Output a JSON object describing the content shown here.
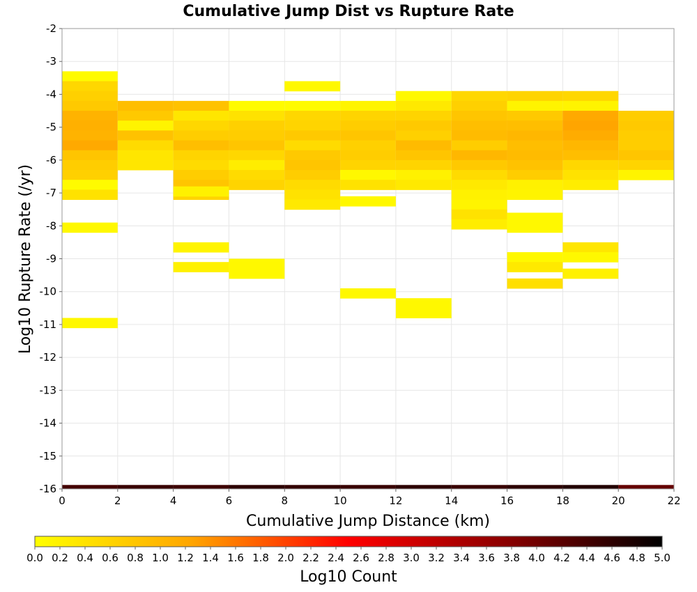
{
  "chart_data": {
    "type": "heatmap",
    "title": "Cumulative Jump Dist vs Rupture Rate",
    "xlabel": "Cumulative Jump Distance (km)",
    "ylabel": "Log10 Rupture Rate (/yr)",
    "xlim": [
      0,
      22
    ],
    "ylim": [
      -16,
      -2
    ],
    "x_ticks": [
      0,
      2,
      4,
      6,
      8,
      10,
      12,
      14,
      16,
      18,
      20,
      22
    ],
    "y_ticks": [
      -2,
      -3,
      -4,
      -5,
      -6,
      -7,
      -8,
      -9,
      -10,
      -11,
      -12,
      -13,
      -14,
      -15,
      -16
    ],
    "x_bin_width": 2,
    "y_bin_height": 0.3,
    "grid": true,
    "colorbar": {
      "label": "Log10 Count",
      "min": 0.0,
      "max": 5.0,
      "ticks": [
        "0.0",
        "0.2",
        "0.4",
        "0.6",
        "0.8",
        "1.0",
        "1.2",
        "1.4",
        "1.6",
        "1.8",
        "2.0",
        "2.2",
        "2.4",
        "2.6",
        "2.8",
        "3.0",
        "3.2",
        "3.4",
        "3.6",
        "3.8",
        "4.0",
        "4.2",
        "4.4",
        "4.6",
        "4.8",
        "5.0"
      ],
      "colors": [
        "#ffff00",
        "#ffa500",
        "#ff0000",
        "#8b0000",
        "#000000"
      ]
    },
    "columns": [
      {
        "x": 0,
        "y_top": -3.3,
        "values": [
          0.05,
          0.55,
          0.65,
          0.75,
          1.05,
          1.1,
          1.05,
          1.2,
          0.8,
          0.7,
          0.65,
          0.05,
          0.4
        ]
      },
      {
        "x": 0,
        "y_top": -7.9,
        "values": [
          0.1
        ]
      },
      {
        "x": 0,
        "y_top": -10.8,
        "values": [
          0.1
        ]
      },
      {
        "x": 2,
        "y_top": -4.2,
        "values": [
          0.9,
          0.75,
          0.15,
          0.85,
          0.5,
          0.35,
          0.35
        ]
      },
      {
        "x": 4,
        "y_top": -4.2,
        "values": [
          0.85,
          0.35,
          0.55,
          0.7,
          0.9,
          0.6,
          0.5,
          0.7,
          0.8,
          0.6
        ]
      },
      {
        "x": 4,
        "y_top": -6.8,
        "values": [
          0.2
        ]
      },
      {
        "x": 4,
        "y_top": -8.5,
        "values": [
          0.15
        ]
      },
      {
        "x": 4,
        "y_top": -9.1,
        "values": [
          0.2
        ]
      },
      {
        "x": 6,
        "y_top": -4.2,
        "values": [
          0.05,
          0.4,
          0.65,
          0.7,
          0.8,
          0.55,
          0.25,
          0.5,
          0.6
        ]
      },
      {
        "x": 6,
        "y_top": -9.0,
        "values": [
          0.1,
          0.1
        ]
      },
      {
        "x": 8,
        "y_top": -3.6,
        "values": [
          0.1
        ]
      },
      {
        "x": 8,
        "y_top": -4.2,
        "values": [
          0.05,
          0.55,
          0.6,
          0.75,
          0.5,
          0.75,
          0.8,
          0.7,
          0.5,
          0.4,
          0.3
        ]
      },
      {
        "x": 10,
        "y_top": -4.2,
        "values": [
          0.15,
          0.6,
          0.7,
          0.8,
          0.65,
          0.7,
          0.6,
          0.1,
          0.4
        ]
      },
      {
        "x": 10,
        "y_top": -7.1,
        "values": [
          0.1
        ]
      },
      {
        "x": 10,
        "y_top": -9.9,
        "values": [
          0.1
        ]
      },
      {
        "x": 12,
        "y_top": -3.9,
        "values": [
          0.1,
          0.3,
          0.6,
          0.75,
          0.65,
          0.95,
          0.8,
          0.6,
          0.2,
          0.3
        ]
      },
      {
        "x": 12,
        "y_top": -10.2,
        "values": [
          0.1,
          0.1
        ]
      },
      {
        "x": 14,
        "y_top": -3.9,
        "values": [
          0.55,
          0.65,
          0.8,
          0.9,
          0.95,
          0.7,
          1.0,
          0.75,
          0.5,
          0.3,
          0.2,
          0.15,
          0.4,
          0.25
        ]
      },
      {
        "x": 16,
        "y_top": -3.9,
        "values": [
          0.6,
          0.15,
          0.75,
          0.9,
          1.0,
          0.9,
          0.95,
          0.85,
          0.7,
          0.2,
          0.15
        ]
      },
      {
        "x": 16,
        "y_top": -7.6,
        "values": [
          0.1,
          0.1
        ]
      },
      {
        "x": 16,
        "y_top": -8.8,
        "values": [
          0.1,
          0.3
        ]
      },
      {
        "x": 16,
        "y_top": -9.6,
        "values": [
          0.45
        ]
      },
      {
        "x": 18,
        "y_top": -3.9,
        "values": [
          0.55,
          0.15,
          1.2,
          1.25,
          1.15,
          1.0,
          0.9,
          0.55,
          0.4,
          0.25
        ]
      },
      {
        "x": 18,
        "y_top": -8.5,
        "values": [
          0.35,
          0.1
        ]
      },
      {
        "x": 18,
        "y_top": -9.3,
        "values": [
          0.2
        ]
      },
      {
        "x": 20,
        "y_top": -4.5,
        "values": [
          0.7,
          0.75,
          0.7,
          0.7,
          0.8,
          0.6,
          0.15
        ]
      }
    ],
    "bottom_row": {
      "y_top": -15.88,
      "y_bottom": -16.0,
      "values": [
        4.4,
        4.5,
        4.45,
        4.6,
        4.55,
        4.5,
        4.6,
        4.5,
        4.6,
        4.7,
        4.1
      ]
    }
  }
}
